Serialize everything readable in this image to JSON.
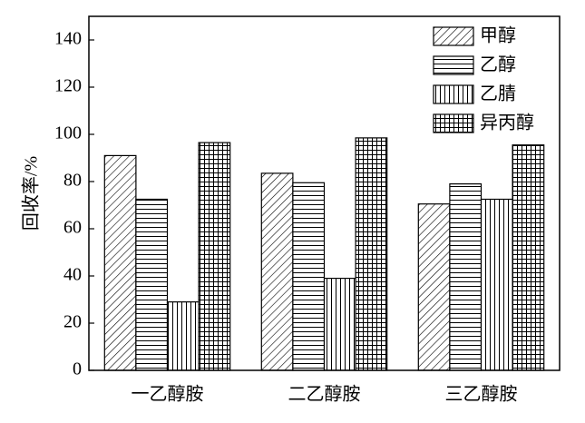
{
  "chart_data": {
    "type": "bar",
    "y_label": "回收率/%",
    "categories": [
      "一乙醇胺",
      "二乙醇胺",
      "三乙醇胺"
    ],
    "series": [
      {
        "name": "甲醇",
        "color": "#000000",
        "hatch": "diagonal",
        "values": [
          91,
          83.5,
          70.5
        ]
      },
      {
        "name": "乙醇",
        "color": "#000000",
        "hatch": "horizontal",
        "values": [
          72.5,
          79.5,
          79
        ]
      },
      {
        "name": "乙腈",
        "color": "#000000",
        "hatch": "vertical",
        "values": [
          29,
          39,
          72.5
        ]
      },
      {
        "name": "异丙醇",
        "color": "#000000",
        "hatch": "grid",
        "values": [
          96.5,
          98.5,
          95.5
        ]
      }
    ],
    "ylim": [
      0,
      150
    ],
    "yticks": [
      0,
      20,
      40,
      60,
      80,
      100,
      120,
      140
    ],
    "grid": false,
    "legend": "upper right"
  }
}
